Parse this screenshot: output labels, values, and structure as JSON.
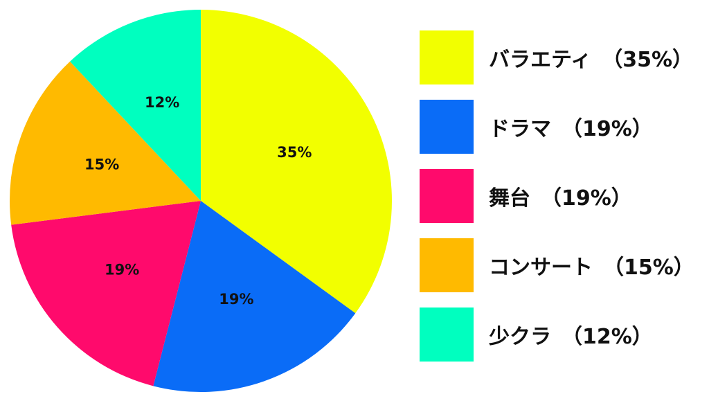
{
  "chart_data": {
    "type": "pie",
    "categories": [
      "バラエティ",
      "ドラマ",
      "舞台",
      "コンサート",
      "少クラ"
    ],
    "values": [
      35,
      19,
      19,
      15,
      12
    ],
    "slice_labels": [
      "35%",
      "19%",
      "19%",
      "15%",
      "12%"
    ],
    "legend_entries": [
      "バラエティ　（35%）",
      "ドラマ　（19%）",
      "舞台　（19%）",
      "コンサート　（15%）",
      "少クラ　（12%）"
    ],
    "colors": [
      "#f2ff00",
      "#0a6cf7",
      "#ff0a6c",
      "#ffba00",
      "#00ffbf"
    ],
    "legend_position": "right",
    "start_angle": "12 o'clock",
    "direction": "clockwise",
    "unit": "%"
  }
}
